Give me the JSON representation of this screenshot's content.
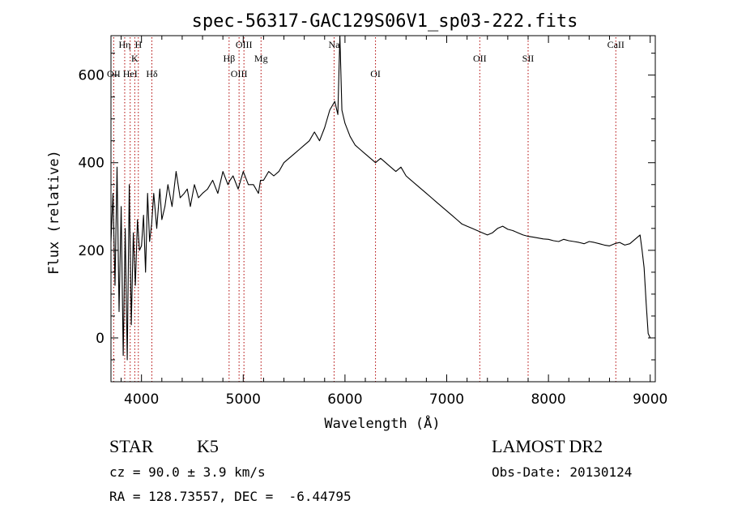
{
  "chart_data": {
    "type": "line",
    "title": "spec-56317-GAC129S06V1_sp03-222.fits",
    "xlabel": "Wavelength (Å)",
    "ylabel": "Flux (relative)",
    "xlim": [
      3700,
      9050
    ],
    "ylim": [
      -100,
      690
    ],
    "xticks": [
      4000,
      5000,
      6000,
      7000,
      8000,
      9000
    ],
    "yticks": [
      0,
      200,
      400,
      600
    ],
    "grid": false,
    "series": [
      {
        "x": [
          3700,
          3720,
          3740,
          3760,
          3780,
          3800,
          3820,
          3840,
          3860,
          3880,
          3900,
          3920,
          3940,
          3960,
          3980,
          4000,
          4020,
          4040,
          4060,
          4080,
          4100,
          4120,
          4150,
          4180,
          4200,
          4230,
          4260,
          4300,
          4340,
          4380,
          4420,
          4450,
          4480,
          4520,
          4560,
          4600,
          4650,
          4700,
          4750,
          4800,
          4850,
          4870,
          4900,
          4950,
          5000,
          5050,
          5100,
          5150,
          5170,
          5200,
          5250,
          5300,
          5350,
          5400,
          5450,
          5500,
          5550,
          5600,
          5650,
          5700,
          5750,
          5800,
          5850,
          5900,
          5930,
          5950,
          5970,
          6000,
          6050,
          6100,
          6150,
          6200,
          6250,
          6300,
          6350,
          6400,
          6450,
          6500,
          6550,
          6600,
          6650,
          6700,
          6750,
          6800,
          6850,
          6900,
          6950,
          7000,
          7050,
          7100,
          7150,
          7200,
          7250,
          7300,
          7350,
          7400,
          7450,
          7500,
          7550,
          7600,
          7650,
          7700,
          7750,
          7800,
          7850,
          7900,
          7950,
          8000,
          8050,
          8100,
          8150,
          8200,
          8250,
          8300,
          8350,
          8400,
          8450,
          8500,
          8550,
          8600,
          8650,
          8700,
          8750,
          8800,
          8850,
          8900,
          8920,
          8940,
          8960,
          8980,
          9000
        ],
        "y": [
          220,
          330,
          120,
          390,
          60,
          300,
          -40,
          250,
          -50,
          350,
          30,
          240,
          120,
          270,
          200,
          210,
          280,
          150,
          330,
          220,
          260,
          330,
          250,
          340,
          270,
          300,
          350,
          300,
          380,
          320,
          330,
          340,
          300,
          350,
          320,
          330,
          340,
          360,
          330,
          380,
          350,
          360,
          370,
          340,
          380,
          350,
          350,
          330,
          360,
          360,
          380,
          370,
          380,
          400,
          410,
          420,
          430,
          440,
          450,
          470,
          450,
          480,
          520,
          540,
          510,
          690,
          520,
          490,
          460,
          440,
          430,
          420,
          410,
          400,
          410,
          400,
          390,
          380,
          390,
          370,
          360,
          350,
          340,
          330,
          320,
          310,
          300,
          290,
          280,
          270,
          260,
          255,
          250,
          245,
          240,
          235,
          240,
          250,
          255,
          248,
          245,
          240,
          235,
          232,
          230,
          228,
          226,
          225,
          222,
          220,
          225,
          222,
          220,
          218,
          215,
          220,
          218,
          215,
          212,
          210,
          215,
          218,
          212,
          215,
          225,
          235,
          200,
          160,
          80,
          10,
          0
        ]
      }
    ],
    "line_markers": [
      {
        "label": "OII",
        "wavelength": 3727,
        "row": 3
      },
      {
        "label": "Hη",
        "wavelength": 3835,
        "row": 1
      },
      {
        "label": "HeI",
        "wavelength": 3889,
        "row": 3
      },
      {
        "label": "K",
        "wavelength": 3934,
        "row": 2
      },
      {
        "label": "H",
        "wavelength": 3969,
        "row": 1
      },
      {
        "label": "Hδ",
        "wavelength": 4102,
        "row": 3
      },
      {
        "label": "Hβ",
        "wavelength": 4861,
        "row": 2
      },
      {
        "label": "OIII",
        "wavelength": 4959,
        "row": 3
      },
      {
        "label": "OIII",
        "wavelength": 5007,
        "row": 1
      },
      {
        "label": "Mg",
        "wavelength": 5175,
        "row": 2
      },
      {
        "label": "Na",
        "wavelength": 5893,
        "row": 1
      },
      {
        "label": "OI",
        "wavelength": 6300,
        "row": 3
      },
      {
        "label": "OII",
        "wavelength": 7325,
        "row": 2
      },
      {
        "label": "SII",
        "wavelength": 7800,
        "row": 2
      },
      {
        "label": "CaII",
        "wavelength": 8662,
        "row": 1
      }
    ]
  },
  "footer": {
    "class_label": "STAR",
    "subclass": "K5",
    "cz": "cz = 90.0 ± 3.9 km/s",
    "coords": "RA = 128.73557, DEC =  -6.44795",
    "survey": "LAMOST DR2",
    "obs_date": "Obs-Date: 20130124"
  },
  "colors": {
    "marker_line": "#b00000",
    "spectrum": "#000000"
  }
}
